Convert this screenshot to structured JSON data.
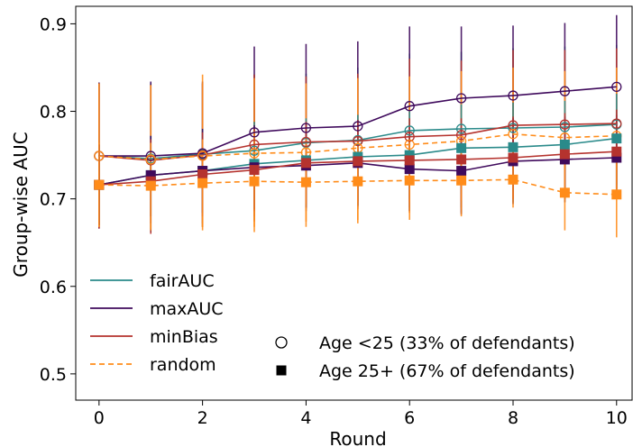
{
  "chart_data": {
    "type": "line",
    "xlabel": "Round",
    "ylabel": "Group-wise AUC",
    "xlim": [
      -0.45,
      10.3
    ],
    "ylim": [
      0.47,
      0.92
    ],
    "x": [
      0,
      1,
      2,
      3,
      4,
      5,
      6,
      7,
      8,
      9,
      10
    ],
    "xticks": [
      "0",
      "2",
      "4",
      "6",
      "8",
      "10"
    ],
    "yticks": [
      "0.5",
      "0.6",
      "0.7",
      "0.8",
      "0.9"
    ],
    "grid": false,
    "legend_position": "lower-left",
    "legend": {
      "methods": [
        "fairAUC",
        "maxAUC",
        "minBias",
        "random"
      ],
      "groups": [
        "Age <25 (33% of defendants)",
        "Age 25+ (67% of defendants)"
      ]
    },
    "series": [
      {
        "method": "fairAUC",
        "group": "Age <25 (33% of defendants)",
        "marker": "circle",
        "color": "#2a8a8a",
        "dash": false,
        "values": [
          0.749,
          0.746,
          0.751,
          0.755,
          0.764,
          0.767,
          0.778,
          0.78,
          0.781,
          0.782,
          0.785
        ],
        "err_low": [
          0.668,
          0.662,
          0.668,
          0.676,
          0.689,
          0.692,
          0.69,
          0.69,
          0.696,
          0.7,
          0.702
        ],
        "err_high": [
          0.832,
          0.832,
          0.832,
          0.842,
          0.843,
          0.85,
          0.866,
          0.868,
          0.872,
          0.874,
          0.876
        ]
      },
      {
        "method": "maxAUC",
        "group": "Age <25 (33% of defendants)",
        "marker": "circle",
        "color": "#3f0a5c",
        "dash": false,
        "values": [
          0.749,
          0.749,
          0.752,
          0.776,
          0.781,
          0.783,
          0.806,
          0.815,
          0.818,
          0.823,
          0.828
        ],
        "err_low": [
          0.666,
          0.664,
          0.672,
          0.68,
          0.686,
          0.688,
          0.686,
          0.682,
          0.71,
          0.712,
          0.712
        ],
        "err_high": [
          0.833,
          0.834,
          0.834,
          0.874,
          0.877,
          0.88,
          0.897,
          0.897,
          0.898,
          0.901,
          0.91
        ]
      },
      {
        "method": "minBias",
        "group": "Age <25 (33% of defendants)",
        "marker": "circle",
        "color": "#b5332e",
        "dash": false,
        "values": [
          0.749,
          0.744,
          0.75,
          0.762,
          0.765,
          0.766,
          0.771,
          0.773,
          0.784,
          0.785,
          0.786
        ],
        "err_low": [
          0.666,
          0.66,
          0.668,
          0.674,
          0.69,
          0.69,
          0.684,
          0.69,
          0.7,
          0.703,
          0.7
        ],
        "err_high": [
          0.832,
          0.83,
          0.832,
          0.842,
          0.84,
          0.843,
          0.86,
          0.858,
          0.87,
          0.87,
          0.872
        ]
      },
      {
        "method": "random",
        "group": "Age <25 (33% of defendants)",
        "marker": "circle",
        "color": "#ff8c1a",
        "dash": true,
        "values": [
          0.749,
          0.745,
          0.749,
          0.752,
          0.753,
          0.758,
          0.762,
          0.766,
          0.774,
          0.77,
          0.772
        ],
        "err_low": [
          0.668,
          0.664,
          0.664,
          0.668,
          0.674,
          0.676,
          0.684,
          0.688,
          0.7,
          0.696,
          0.7
        ],
        "err_high": [
          0.832,
          0.83,
          0.842,
          0.838,
          0.832,
          0.838,
          0.84,
          0.846,
          0.85,
          0.846,
          0.85
        ]
      },
      {
        "method": "fairAUC",
        "group": "Age 25+ (67% of defendants)",
        "marker": "square",
        "color": "#2a8a8a",
        "dash": false,
        "values": [
          0.716,
          0.727,
          0.732,
          0.74,
          0.744,
          0.748,
          0.75,
          0.758,
          0.759,
          0.762,
          0.769
        ],
        "err_low": [
          0.67,
          0.68,
          0.684,
          0.69,
          0.694,
          0.698,
          0.7,
          0.706,
          0.708,
          0.71,
          0.716
        ],
        "err_high": [
          0.762,
          0.772,
          0.78,
          0.788,
          0.792,
          0.796,
          0.8,
          0.808,
          0.81,
          0.812,
          0.82
        ]
      },
      {
        "method": "maxAUC",
        "group": "Age 25+ (67% of defendants)",
        "marker": "square",
        "color": "#3f0a5c",
        "dash": false,
        "values": [
          0.716,
          0.727,
          0.732,
          0.736,
          0.738,
          0.741,
          0.734,
          0.732,
          0.743,
          0.745,
          0.747
        ],
        "err_low": [
          0.67,
          0.68,
          0.684,
          0.688,
          0.69,
          0.692,
          0.686,
          0.684,
          0.694,
          0.696,
          0.7
        ],
        "err_high": [
          0.762,
          0.772,
          0.78,
          0.784,
          0.786,
          0.79,
          0.782,
          0.78,
          0.792,
          0.794,
          0.796
        ]
      },
      {
        "method": "minBias",
        "group": "Age 25+ (67% of defendants)",
        "marker": "square",
        "color": "#b5332e",
        "dash": false,
        "values": [
          0.716,
          0.72,
          0.728,
          0.733,
          0.741,
          0.743,
          0.744,
          0.745,
          0.747,
          0.751,
          0.754
        ],
        "err_low": [
          0.67,
          0.672,
          0.68,
          0.686,
          0.694,
          0.696,
          0.696,
          0.698,
          0.7,
          0.704,
          0.706
        ],
        "err_high": [
          0.762,
          0.768,
          0.776,
          0.78,
          0.788,
          0.79,
          0.792,
          0.792,
          0.794,
          0.798,
          0.802
        ]
      },
      {
        "method": "random",
        "group": "Age 25+ (67% of defendants)",
        "marker": "square",
        "color": "#ff8c1a",
        "dash": true,
        "values": [
          0.716,
          0.715,
          0.718,
          0.72,
          0.719,
          0.72,
          0.721,
          0.721,
          0.722,
          0.707,
          0.705
        ],
        "err_low": [
          0.668,
          0.666,
          0.668,
          0.662,
          0.668,
          0.672,
          0.676,
          0.68,
          0.69,
          0.664,
          0.656
        ],
        "err_high": [
          0.764,
          0.764,
          0.768,
          0.778,
          0.77,
          0.768,
          0.766,
          0.762,
          0.754,
          0.75,
          0.754
        ]
      }
    ]
  }
}
